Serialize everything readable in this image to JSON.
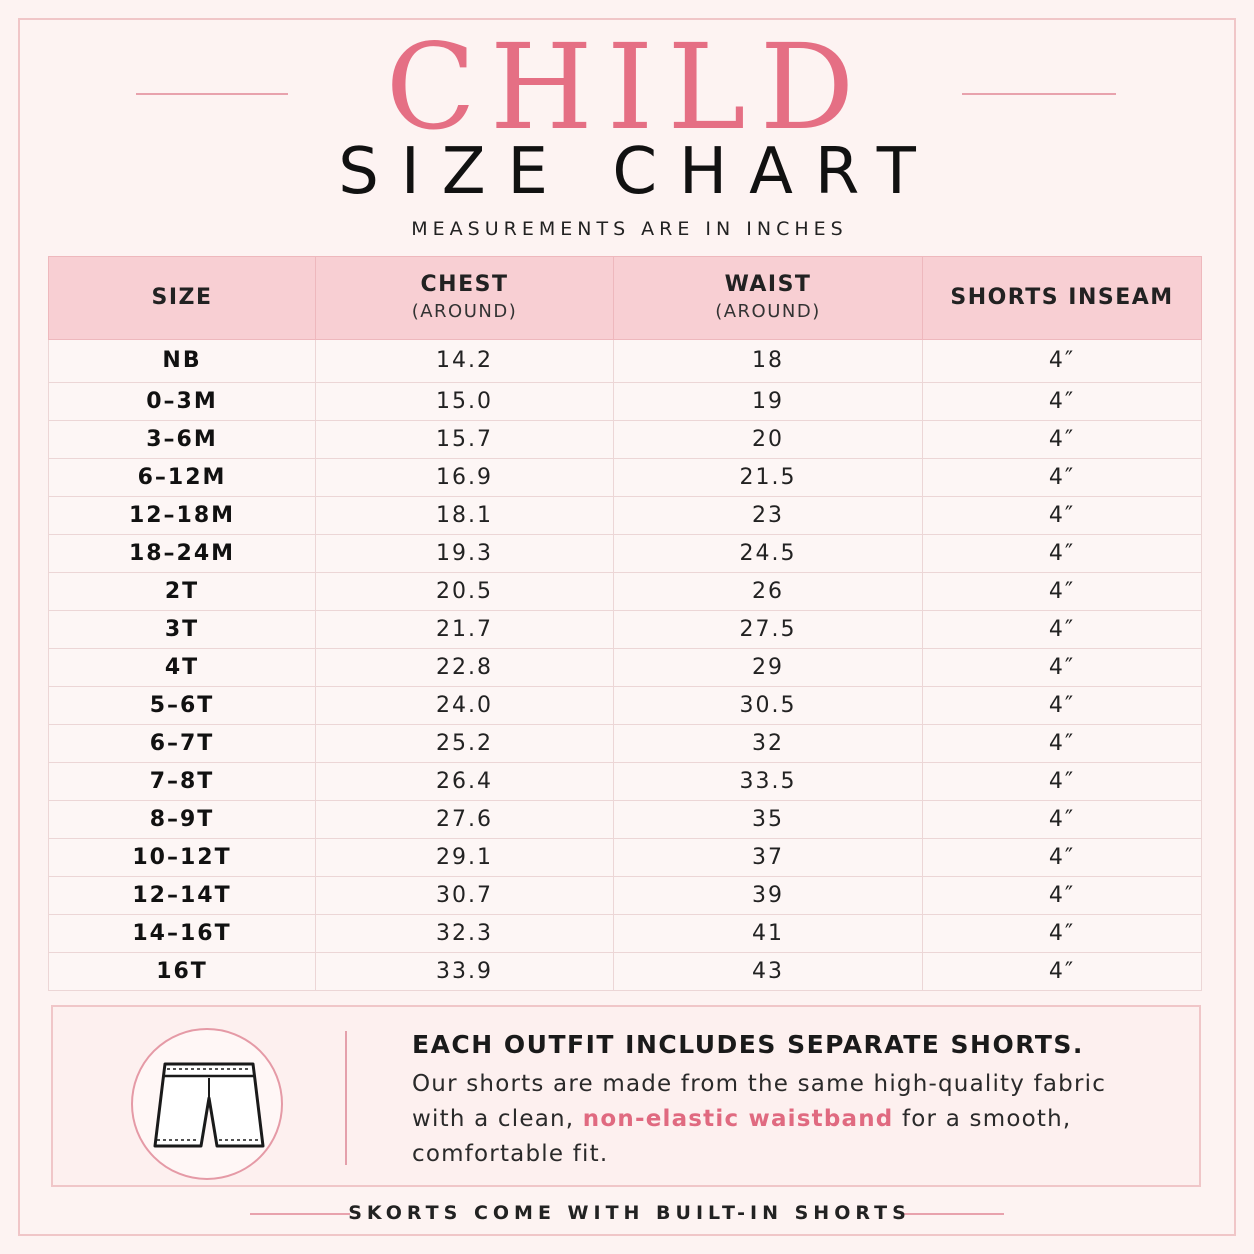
{
  "header": {
    "title_line1": "CHILD",
    "title_line2": "SIZE CHART",
    "subtitle": "MEASUREMENTS ARE IN INCHES"
  },
  "table": {
    "columns": [
      {
        "label": "SIZE",
        "sub": ""
      },
      {
        "label": "CHEST",
        "sub": "(AROUND)"
      },
      {
        "label": "WAIST",
        "sub": "(AROUND)"
      },
      {
        "label": "SHORTS INSEAM",
        "sub": ""
      }
    ],
    "rows": [
      [
        "NB",
        "14.2",
        "18",
        "4″"
      ],
      [
        "0–3M",
        "15.0",
        "19",
        "4″"
      ],
      [
        "3–6M",
        "15.7",
        "20",
        "4″"
      ],
      [
        "6–12M",
        "16.9",
        "21.5",
        "4″"
      ],
      [
        "12–18M",
        "18.1",
        "23",
        "4″"
      ],
      [
        "18–24M",
        "19.3",
        "24.5",
        "4″"
      ],
      [
        "2T",
        "20.5",
        "26",
        "4″"
      ],
      [
        "3T",
        "21.7",
        "27.5",
        "4″"
      ],
      [
        "4T",
        "22.8",
        "29",
        "4″"
      ],
      [
        "5–6T",
        "24.0",
        "30.5",
        "4″"
      ],
      [
        "6–7T",
        "25.2",
        "32",
        "4″"
      ],
      [
        "7–8T",
        "26.4",
        "33.5",
        "4″"
      ],
      [
        "8–9T",
        "27.6",
        "35",
        "4″"
      ],
      [
        "10–12T",
        "29.1",
        "37",
        "4″"
      ],
      [
        "12–14T",
        "30.7",
        "39",
        "4″"
      ],
      [
        "14–16T",
        "32.3",
        "41",
        "4″"
      ],
      [
        "16T",
        "33.9",
        "43",
        "4″"
      ]
    ]
  },
  "info": {
    "icon": "shorts-icon",
    "heading": "EACH OUTFIT INCLUDES SEPARATE SHORTS.",
    "body_before": "Our shorts are made from the same high-quality fabric with a clean,",
    "body_highlight": "non-elastic waistband",
    "body_after": "for a smooth, comfortable fit."
  },
  "footer": {
    "note": "SKORTS COME WITH BUILT-IN SHORTS"
  },
  "colors": {
    "accent_pink": "#e56f84",
    "header_fill": "#f8cfd3",
    "background": "#fdf3f2"
  }
}
